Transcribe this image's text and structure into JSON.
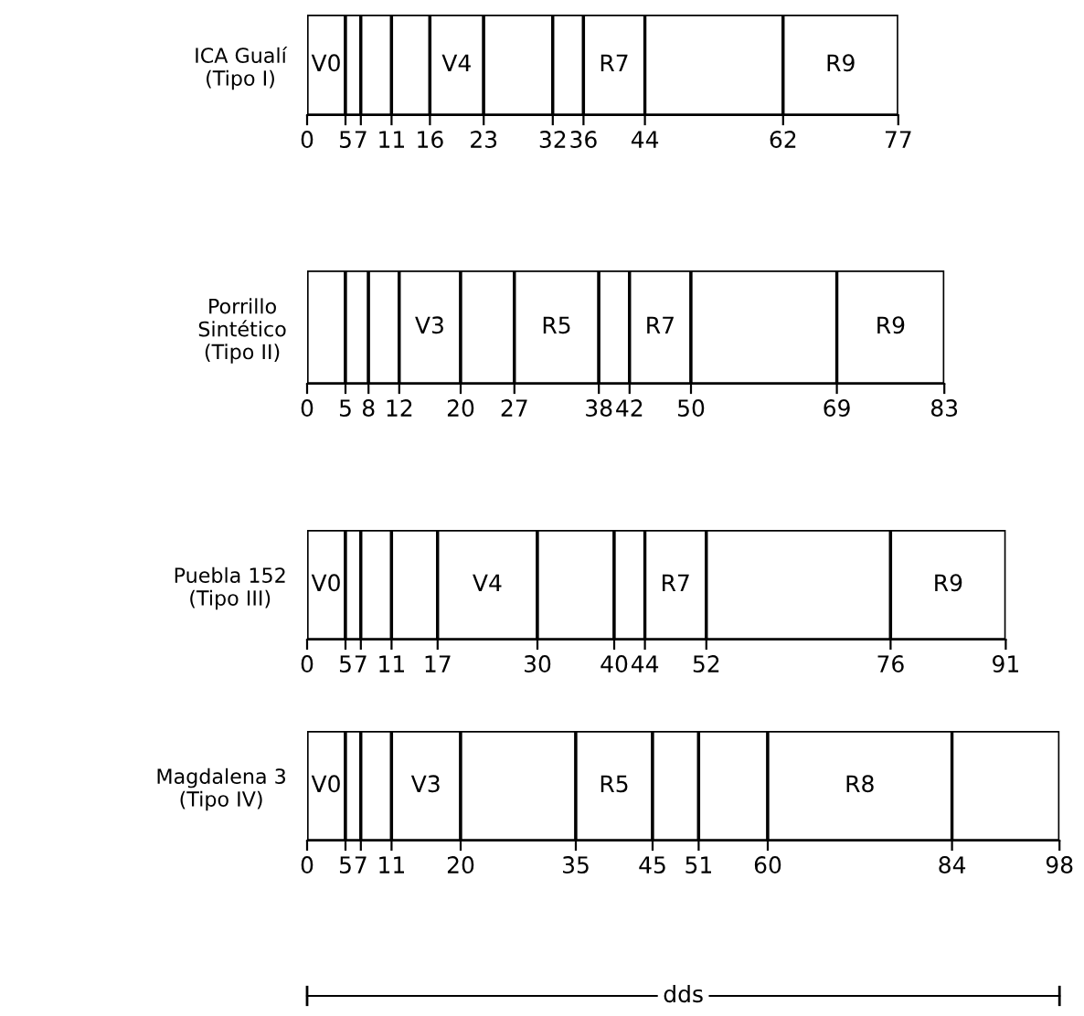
{
  "chart_data": [
    {
      "type": "bar",
      "orientation": "horizontal",
      "stacked": true,
      "legend": false,
      "grid": false,
      "categories": [
        "ICA Gualí\n(Tipo I)"
      ],
      "xlim": [
        0,
        77
      ],
      "xticks": [
        0,
        5,
        7,
        11,
        16,
        23,
        32,
        36,
        44,
        62,
        77
      ],
      "series": [
        {
          "name": "V0",
          "color": "#ffffff",
          "values": [
            5
          ]
        },
        {
          "color": "#ffffff",
          "values": [
            2
          ]
        },
        {
          "color": "#ffffff",
          "values": [
            4
          ]
        },
        {
          "color": "#ffffff",
          "values": [
            5
          ]
        },
        {
          "name": "V4",
          "color": "#ffffff",
          "values": [
            7
          ]
        },
        {
          "color": "#ffffff",
          "values": [
            9
          ]
        },
        {
          "color": "#ffffff",
          "values": [
            4
          ]
        },
        {
          "name": "R7",
          "color": "#ffffff",
          "values": [
            8
          ]
        },
        {
          "color": "#ffffff",
          "values": [
            18
          ]
        },
        {
          "name": "R9",
          "color": "#ffffff",
          "values": [
            15
          ]
        }
      ]
    },
    {
      "type": "bar",
      "orientation": "horizontal",
      "stacked": true,
      "legend": false,
      "grid": false,
      "categories": [
        "Porrillo\nSintético\n(Tipo II)"
      ],
      "xlim": [
        0,
        83
      ],
      "xticks": [
        0,
        5,
        8,
        12,
        20,
        27,
        38,
        42,
        50,
        69,
        83
      ],
      "series": [
        {
          "color": "#ffffff",
          "values": [
            5
          ]
        },
        {
          "color": "#ffffff",
          "values": [
            3
          ]
        },
        {
          "color": "#ffffff",
          "values": [
            4
          ]
        },
        {
          "name": "V3",
          "color": "#ffffff",
          "values": [
            8
          ]
        },
        {
          "color": "#ffffff",
          "values": [
            7
          ]
        },
        {
          "name": "R5",
          "color": "#ffffff",
          "values": [
            11
          ]
        },
        {
          "color": "#ffffff",
          "values": [
            4
          ]
        },
        {
          "name": "R7",
          "color": "#ffffff",
          "values": [
            8
          ]
        },
        {
          "color": "#ffffff",
          "values": [
            19
          ]
        },
        {
          "name": "R9",
          "color": "#ffffff",
          "values": [
            14
          ]
        }
      ]
    },
    {
      "type": "bar",
      "orientation": "horizontal",
      "stacked": true,
      "legend": false,
      "grid": false,
      "categories": [
        "Puebla 152\n(Tipo III)"
      ],
      "xlim": [
        0,
        91
      ],
      "xticks": [
        0,
        5,
        7,
        11,
        17,
        30,
        40,
        44,
        52,
        76,
        91
      ],
      "series": [
        {
          "name": "V0",
          "color": "#ffffff",
          "values": [
            5
          ]
        },
        {
          "color": "#ffffff",
          "values": [
            2
          ]
        },
        {
          "color": "#ffffff",
          "values": [
            4
          ]
        },
        {
          "color": "#ffffff",
          "values": [
            6
          ]
        },
        {
          "name": "V4",
          "color": "#ffffff",
          "values": [
            13
          ]
        },
        {
          "color": "#ffffff",
          "values": [
            10
          ]
        },
        {
          "color": "#ffffff",
          "values": [
            4
          ]
        },
        {
          "name": "R7",
          "color": "#ffffff",
          "values": [
            8
          ]
        },
        {
          "color": "#ffffff",
          "values": [
            24
          ]
        },
        {
          "name": "R9",
          "color": "#ffffff",
          "values": [
            15
          ]
        }
      ]
    },
    {
      "type": "bar",
      "orientation": "horizontal",
      "stacked": true,
      "legend": false,
      "grid": false,
      "categories": [
        "Magdalena 3\n(Tipo IV)"
      ],
      "xlim": [
        0,
        98
      ],
      "xticks": [
        0,
        5,
        7,
        11,
        20,
        35,
        45,
        51,
        60,
        84,
        98
      ],
      "xlabel": "dds",
      "series": [
        {
          "name": "V0",
          "color": "#ffffff",
          "values": [
            5
          ]
        },
        {
          "color": "#ffffff",
          "values": [
            2
          ]
        },
        {
          "color": "#ffffff",
          "values": [
            4
          ]
        },
        {
          "name": "V3",
          "color": "#ffffff",
          "values": [
            9
          ]
        },
        {
          "color": "#ffffff",
          "values": [
            15
          ]
        },
        {
          "name": "R5",
          "color": "#ffffff",
          "values": [
            10
          ]
        },
        {
          "color": "#ffffff",
          "values": [
            6
          ]
        },
        {
          "color": "#ffffff",
          "values": [
            9
          ]
        },
        {
          "name": "R8",
          "color": "#ffffff",
          "values": [
            24
          ]
        },
        {
          "color": "#ffffff",
          "values": [
            14
          ]
        }
      ]
    }
  ]
}
